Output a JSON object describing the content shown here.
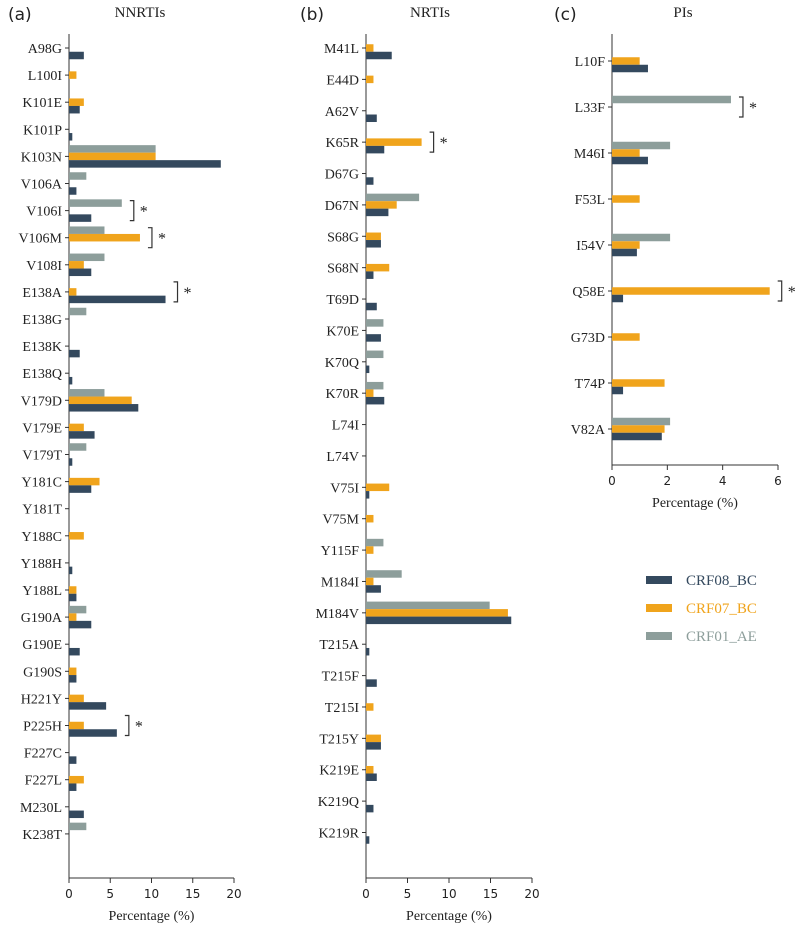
{
  "legend": [
    {
      "name": "CRF08_BC",
      "color": "#34495e"
    },
    {
      "name": "CRF07_BC",
      "color": "#f0a41c"
    },
    {
      "name": "CRF01_AE",
      "color": "#8d9e9b"
    }
  ],
  "chart_data": [
    {
      "type": "bar",
      "panel": "(a)",
      "title": "NNRTIs",
      "xlabel": "Percentage (%)",
      "xlim": [
        0,
        20
      ],
      "xticks": [
        0,
        5,
        10,
        15,
        20
      ],
      "categories": [
        "A98G",
        "L100I",
        "K101E",
        "K101P",
        "K103N",
        "V106A",
        "V106I",
        "V106M",
        "V108I",
        "E138A",
        "E138G",
        "E138K",
        "E138Q",
        "V179D",
        "V179E",
        "V179T",
        "Y181C",
        "Y181T",
        "Y188C",
        "Y188H",
        "Y188L",
        "G190A",
        "G190E",
        "G190S",
        "H221Y",
        "P225H",
        "F227C",
        "F227L",
        "M230L",
        "K238T"
      ],
      "series": [
        {
          "name": "CRF01_AE",
          "values": [
            0,
            0,
            0,
            0,
            10.5,
            2.1,
            6.4,
            4.3,
            4.3,
            0,
            2.1,
            0,
            0,
            4.3,
            0,
            2.1,
            0,
            0,
            0,
            0,
            0,
            2.1,
            0,
            0,
            0,
            0,
            0,
            0,
            0,
            2.1
          ]
        },
        {
          "name": "CRF07_BC",
          "values": [
            0,
            0.9,
            1.8,
            0,
            10.5,
            0,
            0,
            8.6,
            1.8,
            0.9,
            0,
            0,
            0,
            7.6,
            1.8,
            0,
            3.7,
            0,
            1.8,
            0,
            0.9,
            0.9,
            0,
            0.9,
            1.8,
            1.8,
            0,
            1.8,
            0,
            0
          ]
        },
        {
          "name": "CRF08_BC",
          "values": [
            1.8,
            0,
            1.3,
            0.4,
            18.4,
            0.9,
            2.7,
            0,
            2.7,
            11.7,
            0,
            1.3,
            0.4,
            8.4,
            3.1,
            0.4,
            2.7,
            0,
            0,
            0.4,
            0.9,
            2.7,
            1.3,
            0.9,
            4.5,
            5.8,
            0.9,
            0.9,
            1.8,
            0
          ]
        }
      ],
      "significant": [
        "V106I",
        "V106M",
        "E138A",
        "P225H"
      ],
      "sig_label": "*"
    },
    {
      "type": "bar",
      "panel": "(b)",
      "title": "NRTIs",
      "xlabel": "Percentage (%)",
      "xlim": [
        0,
        20
      ],
      "xticks": [
        0,
        5,
        10,
        15,
        20
      ],
      "categories": [
        "M41L",
        "E44D",
        "A62V",
        "K65R",
        "D67G",
        "D67N",
        "S68G",
        "S68N",
        "T69D",
        "K70E",
        "K70Q",
        "K70R",
        "L74I",
        "L74V",
        "V75I",
        "V75M",
        "Y115F",
        "M184I",
        "M184V",
        "T215A",
        "T215F",
        "T215I",
        "T215Y",
        "K219E",
        "K219Q",
        "K219R"
      ],
      "series": [
        {
          "name": "CRF01_AE",
          "values": [
            0,
            0,
            0,
            0,
            0,
            6.4,
            0,
            0,
            0,
            2.1,
            2.1,
            2.1,
            0,
            0,
            0,
            0,
            2.1,
            4.3,
            14.9,
            0,
            0,
            0,
            0,
            0,
            0,
            0
          ]
        },
        {
          "name": "CRF07_BC",
          "values": [
            0.9,
            0.9,
            0,
            6.7,
            0,
            3.7,
            1.8,
            2.8,
            0,
            0,
            0,
            0.9,
            0,
            0,
            2.8,
            0.9,
            0.9,
            0.9,
            17.1,
            0,
            0,
            0.9,
            1.8,
            0.9,
            0,
            0
          ]
        },
        {
          "name": "CRF08_BC",
          "values": [
            3.1,
            0,
            1.3,
            2.2,
            0.9,
            2.7,
            1.8,
            0.9,
            1.3,
            1.8,
            0.4,
            2.2,
            0,
            0,
            0.4,
            0,
            0,
            1.8,
            17.5,
            0.4,
            1.3,
            0,
            1.8,
            1.3,
            0.9,
            0.4
          ]
        }
      ],
      "significant": [
        "K65R"
      ],
      "sig_label": "*"
    },
    {
      "type": "bar",
      "panel": "(c)",
      "title": "PIs",
      "xlabel": "Percentage (%)",
      "xlim": [
        0,
        6
      ],
      "xticks": [
        0,
        2,
        4,
        6
      ],
      "categories": [
        "L10F",
        "L33F",
        "M46I",
        "F53L",
        "I54V",
        "Q58E",
        "G73D",
        "T74P",
        "V82A"
      ],
      "series": [
        {
          "name": "CRF01_AE",
          "values": [
            0,
            4.3,
            2.1,
            0,
            2.1,
            0,
            0,
            0,
            2.1
          ]
        },
        {
          "name": "CRF07_BC",
          "values": [
            1.0,
            0,
            1.0,
            1.0,
            1.0,
            5.7,
            1.0,
            1.9,
            1.9
          ]
        },
        {
          "name": "CRF08_BC",
          "values": [
            1.3,
            0,
            1.3,
            0,
            0.9,
            0.4,
            0,
            0.4,
            1.8
          ]
        }
      ],
      "significant": [
        "L33F",
        "Q58E"
      ],
      "sig_label": "*"
    }
  ]
}
